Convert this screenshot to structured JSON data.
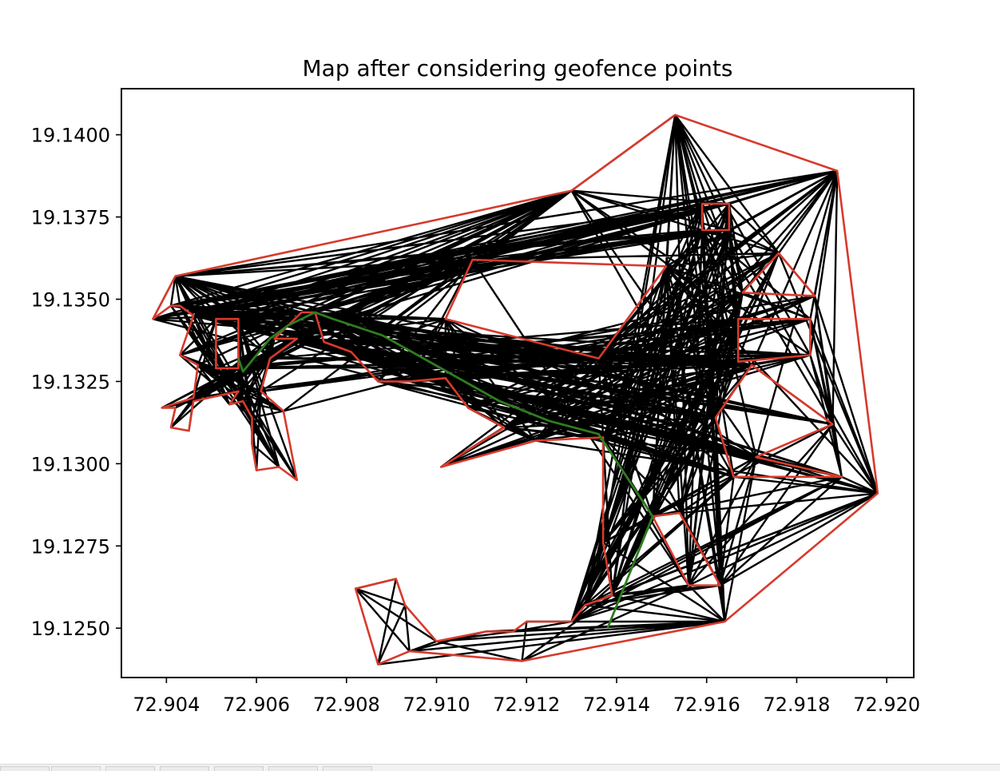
{
  "chart_data": {
    "type": "line",
    "title": "Map after considering geofence points",
    "xlabel": "",
    "ylabel": "",
    "xlim": [
      72.903,
      72.9206
    ],
    "ylim": [
      19.1235,
      19.1414
    ],
    "xticks": [
      72.904,
      72.906,
      72.908,
      72.91,
      72.912,
      72.914,
      72.916,
      72.918,
      72.92
    ],
    "xtick_labels": [
      "72.904",
      "72.906",
      "72.908",
      "72.910",
      "72.912",
      "72.914",
      "72.916",
      "72.918",
      "72.920"
    ],
    "yticks": [
      19.125,
      19.1275,
      19.13,
      19.1325,
      19.135,
      19.1375,
      19.14
    ],
    "ytick_labels": [
      "19.1250",
      "19.1275",
      "19.1300",
      "19.1325",
      "19.1350",
      "19.1375",
      "19.1400"
    ],
    "grid": false,
    "colors": {
      "edges": "#000000",
      "geofence": "#d73a2c",
      "path": "#2e7d1f"
    },
    "outer_boundary": [
      [
        72.9037,
        19.1344
      ],
      [
        72.9042,
        19.1357
      ],
      [
        72.913,
        19.1383
      ],
      [
        72.9153,
        19.1406
      ],
      [
        72.9189,
        19.1389
      ],
      [
        72.9198,
        19.1291
      ],
      [
        72.9164,
        19.1252
      ],
      [
        72.9119,
        19.124
      ],
      [
        72.9094,
        19.1243
      ],
      [
        72.9087,
        19.1239
      ],
      [
        72.9082,
        19.1262
      ],
      [
        72.9091,
        19.1265
      ],
      [
        72.9093,
        19.1257
      ],
      [
        72.91,
        19.1246
      ],
      [
        72.9111,
        19.1249
      ],
      [
        72.9117,
        19.1249
      ],
      [
        72.912,
        19.1252
      ],
      [
        72.913,
        19.1252
      ],
      [
        72.9133,
        19.1257
      ],
      [
        72.9139,
        19.126
      ],
      [
        72.9137,
        19.1276
      ],
      [
        72.9137,
        19.1308
      ],
      [
        72.9122,
        19.1307
      ],
      [
        72.9101,
        19.1299
      ],
      [
        72.9115,
        19.1311
      ],
      [
        72.9107,
        19.1317
      ],
      [
        72.9102,
        19.1326
      ],
      [
        72.9094,
        19.1325
      ],
      [
        72.9087,
        19.1325
      ],
      [
        72.9081,
        19.1334
      ],
      [
        72.9075,
        19.1337
      ],
      [
        72.9073,
        19.1346
      ],
      [
        72.907,
        19.1346
      ],
      [
        72.9064,
        19.1338
      ],
      [
        72.9069,
        19.1338
      ],
      [
        72.9063,
        19.1332
      ],
      [
        72.9061,
        19.1322
      ],
      [
        72.9066,
        19.1316
      ],
      [
        72.9069,
        19.1295
      ],
      [
        72.9065,
        19.1299
      ],
      [
        72.906,
        19.1298
      ],
      [
        72.9059,
        19.1306
      ],
      [
        72.9059,
        19.1314
      ],
      [
        72.9057,
        19.1319
      ],
      [
        72.9054,
        19.1318
      ],
      [
        72.9056,
        19.1322
      ],
      [
        72.9046,
        19.1319
      ],
      [
        72.9045,
        19.131
      ],
      [
        72.9041,
        19.1311
      ],
      [
        72.9042,
        19.1317
      ],
      [
        72.9039,
        19.1317
      ],
      [
        72.9046,
        19.132
      ],
      [
        72.9047,
        19.133
      ],
      [
        72.9043,
        19.1333
      ],
      [
        72.9046,
        19.1345
      ],
      [
        72.9043,
        19.1348
      ],
      [
        72.9041,
        19.1348
      ]
    ],
    "obstacles": [
      [
        [
          72.9051,
          19.1344
        ],
        [
          72.9056,
          19.1344
        ],
        [
          72.9056,
          19.1329
        ],
        [
          72.9051,
          19.1329
        ]
      ],
      [
        [
          72.9159,
          19.1379
        ],
        [
          72.9165,
          19.1379
        ],
        [
          72.9165,
          19.1371
        ],
        [
          72.9159,
          19.1371
        ]
      ],
      [
        [
          72.9108,
          19.1362
        ],
        [
          72.9151,
          19.136
        ],
        [
          72.9136,
          19.1332
        ],
        [
          72.9102,
          19.1344
        ]
      ],
      [
        [
          72.9167,
          19.1344
        ],
        [
          72.9183,
          19.1344
        ],
        [
          72.9183,
          19.1333
        ],
        [
          72.9167,
          19.1331
        ]
      ],
      [
        [
          72.9168,
          19.1352
        ],
        [
          72.9176,
          19.1364
        ],
        [
          72.9184,
          19.1351
        ]
      ],
      [
        [
          72.9162,
          19.1314
        ],
        [
          72.917,
          19.133
        ],
        [
          72.9188,
          19.1312
        ],
        [
          72.9171,
          19.1302
        ],
        [
          72.919,
          19.1296
        ],
        [
          72.9166,
          19.1296
        ]
      ],
      [
        [
          72.9148,
          19.1284
        ],
        [
          72.9154,
          19.1285
        ],
        [
          72.9163,
          19.1263
        ],
        [
          72.9156,
          19.1263
        ]
      ]
    ],
    "path": [
      [
        72.9056,
        19.1332
      ],
      [
        72.9057,
        19.1328
      ],
      [
        72.9063,
        19.1338
      ],
      [
        72.9067,
        19.1342
      ],
      [
        72.9073,
        19.1346
      ],
      [
        72.9077,
        19.1344
      ],
      [
        72.9088,
        19.1339
      ],
      [
        72.9101,
        19.1329
      ],
      [
        72.9114,
        19.1319
      ],
      [
        72.9125,
        19.1313
      ],
      [
        72.9136,
        19.1309
      ],
      [
        72.9148,
        19.1284
      ],
      [
        72.9138,
        19.125
      ]
    ]
  }
}
